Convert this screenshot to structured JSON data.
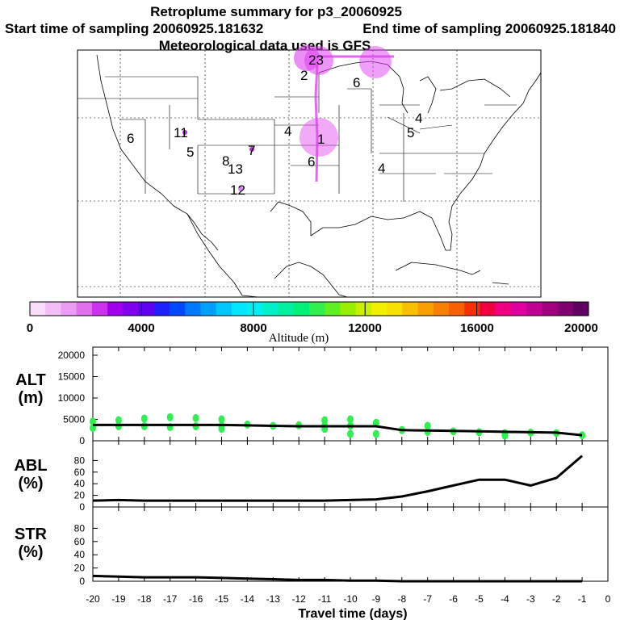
{
  "header": {
    "title": "Retroplume summary for p3_20060925",
    "start_time": "Start time of sampling 20060925.181632",
    "end_time": "End time of sampling 20060925.181840",
    "met_data": "Meteorological data used is GFS"
  },
  "map": {
    "labels": [
      "1",
      "2",
      "4",
      "4",
      "4",
      "5",
      "5",
      "6",
      "6",
      "6",
      "7",
      "8",
      "11",
      "12",
      "13",
      "23"
    ],
    "plume_color": "#e040f0"
  },
  "colorbar": {
    "title": "Altitude (m)",
    "tick_labels": [
      "0",
      "4000",
      "8000",
      "12000",
      "16000",
      "20000"
    ],
    "colors": [
      "#f9ddfb",
      "#f3bdf7",
      "#ec9cf2",
      "#e070ee",
      "#cc33ee",
      "#a000ee",
      "#8000f0",
      "#6000f0",
      "#2020ff",
      "#0048ff",
      "#0078ff",
      "#00a0ff",
      "#00c8ff",
      "#00e8ff",
      "#00f0f0",
      "#00f0c8",
      "#00f0a0",
      "#00f078",
      "#30f050",
      "#60f020",
      "#98f000",
      "#c8f000",
      "#f0f000",
      "#f8e000",
      "#f8c000",
      "#f8a000",
      "#f88000",
      "#f86000",
      "#f83000",
      "#f00040",
      "#f00080",
      "#e000a0",
      "#c00090",
      "#a00080",
      "#800070",
      "#600060"
    ]
  },
  "chart_data": [
    {
      "type": "line",
      "panel_label": "ALT\n(m)",
      "label_line1": "ALT",
      "label_line2": "(m)",
      "x": [
        -20,
        -19,
        -18,
        -17,
        -16,
        -15,
        -14,
        -13,
        -12,
        -11,
        -10,
        -9,
        -8,
        -7,
        -6,
        -5,
        -4,
        -3,
        -2,
        -1
      ],
      "line": [
        3700,
        3700,
        3700,
        3700,
        3700,
        3700,
        3600,
        3500,
        3400,
        3400,
        3400,
        3400,
        2500,
        2400,
        2300,
        2200,
        2100,
        2000,
        1900,
        1300
      ],
      "scatter_color": "#30f050",
      "scatter_points": [
        [
          -20,
          4500
        ],
        [
          -20,
          3000
        ],
        [
          -19,
          4800
        ],
        [
          -19,
          3400
        ],
        [
          -18,
          5200
        ],
        [
          -18,
          3400
        ],
        [
          -17,
          5500
        ],
        [
          -17,
          3200
        ],
        [
          -16,
          5300
        ],
        [
          -16,
          3400
        ],
        [
          -15,
          5000
        ],
        [
          -15,
          3500
        ],
        [
          -15,
          2800
        ],
        [
          -14,
          3800
        ],
        [
          -13,
          3500
        ],
        [
          -12,
          3600
        ],
        [
          -11,
          4800
        ],
        [
          -11,
          3500
        ],
        [
          -11,
          2800
        ],
        [
          -10,
          5000
        ],
        [
          -10,
          3500
        ],
        [
          -10,
          1600
        ],
        [
          -9,
          4200
        ],
        [
          -9,
          1600
        ],
        [
          -8,
          2500
        ],
        [
          -7,
          3500
        ],
        [
          -7,
          2100
        ],
        [
          -6,
          2200
        ],
        [
          -5,
          2000
        ],
        [
          -4,
          1800
        ],
        [
          -4,
          1200
        ],
        [
          -3,
          1900
        ],
        [
          -2,
          1800
        ],
        [
          -1,
          1300
        ]
      ],
      "ylim": [
        0,
        20000
      ],
      "yticks": [
        0,
        5000,
        10000,
        15000,
        20000
      ]
    },
    {
      "type": "line",
      "panel_label": "ABL\n(%)",
      "label_line1": "ABL",
      "label_line2": "(%)",
      "x": [
        -20,
        -19,
        -18,
        -17,
        -16,
        -15,
        -14,
        -13,
        -12,
        -11,
        -10,
        -9,
        -8,
        -7,
        -6,
        -5,
        -4,
        -3,
        -2,
        -1
      ],
      "line": [
        11,
        12,
        11,
        11,
        11,
        11,
        11,
        11,
        11,
        11,
        12,
        13,
        18,
        27,
        37,
        47,
        47,
        37,
        50,
        88
      ],
      "ylim": [
        0,
        100
      ],
      "yticks": [
        0,
        20,
        40,
        60,
        80
      ]
    },
    {
      "type": "line",
      "panel_label": "STR\n(%)",
      "label_line1": "STR",
      "label_line2": "(%)",
      "x": [
        -20,
        -19,
        -18,
        -17,
        -16,
        -15,
        -14,
        -13,
        -12,
        -11,
        -10,
        -9,
        -8,
        -7,
        -6,
        -5,
        -4,
        -3,
        -2,
        -1
      ],
      "line": [
        8,
        7,
        6,
        6,
        6,
        5,
        4,
        3,
        2,
        2,
        1,
        1,
        0,
        0,
        0,
        0,
        0,
        0,
        0,
        0
      ],
      "ylim": [
        0,
        100
      ],
      "yticks": [
        0,
        20,
        40,
        60,
        80
      ],
      "xlabel": "Travel time (days)",
      "xtick_labels": [
        "-20",
        "-19",
        "-18",
        "-17",
        "-16",
        "-15",
        "-14",
        "-13",
        "-12",
        "-11",
        "-10",
        "-9",
        "-8",
        "-7",
        "-6",
        "-5",
        "-4",
        "-3",
        "-2",
        "-1",
        "0"
      ]
    }
  ]
}
